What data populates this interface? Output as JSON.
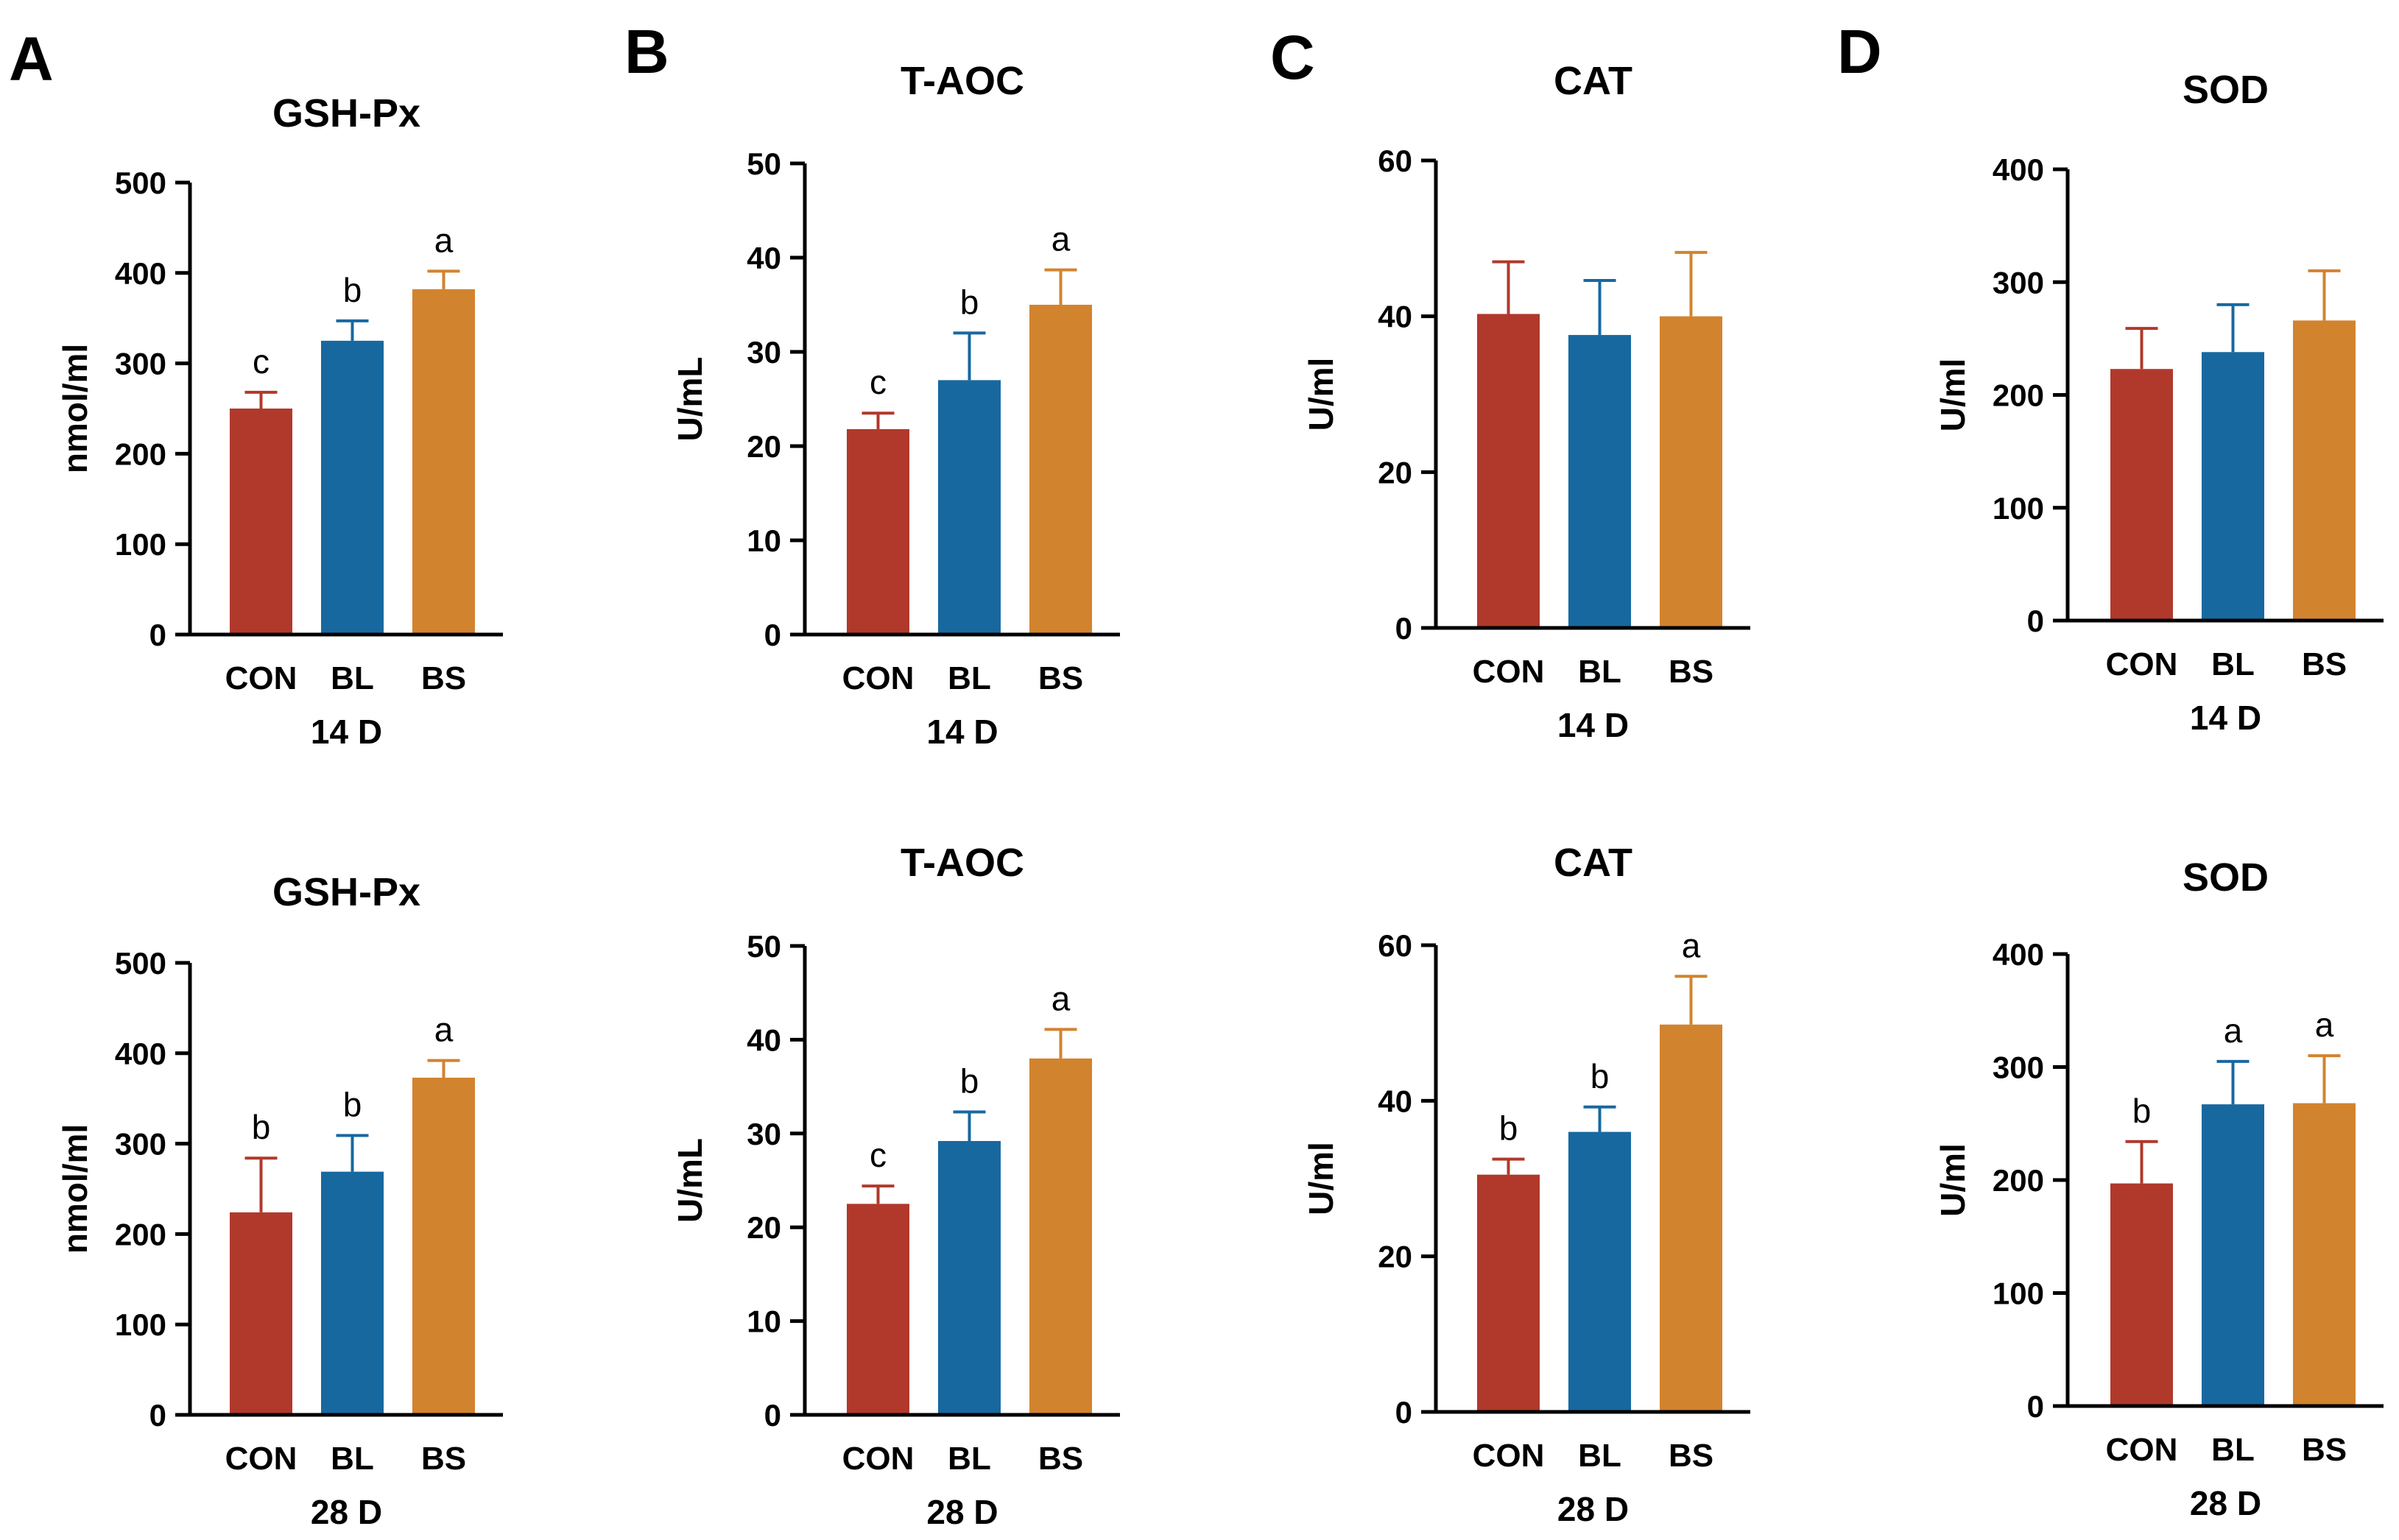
{
  "panels": [
    "A",
    "B",
    "C",
    "D"
  ],
  "colors": {
    "CON": "#B0392B",
    "BL": "#1868A0",
    "BS": "#D2832E",
    "axis": "#000000"
  },
  "chart_data": [
    {
      "type": "bar",
      "panel": "A",
      "title": "GSH-Px",
      "xlabel": "14 D",
      "ylabel": "nmol/ml",
      "categories": [
        "CON",
        "BL",
        "BS"
      ],
      "values": [
        250,
        325,
        382
      ],
      "errors": [
        18,
        22,
        20
      ],
      "significance": [
        "c",
        "b",
        "a"
      ],
      "ylim": [
        0,
        500
      ],
      "yticks": [
        0,
        100,
        200,
        300,
        400,
        500
      ]
    },
    {
      "type": "bar",
      "panel": "B",
      "title": "T-AOC",
      "xlabel": "14 D",
      "ylabel": "U/mL",
      "categories": [
        "CON",
        "BL",
        "BS"
      ],
      "values": [
        21.8,
        27,
        35
      ],
      "errors": [
        1.7,
        5,
        3.7
      ],
      "significance": [
        "c",
        "b",
        "a"
      ],
      "ylim": [
        0,
        50
      ],
      "yticks": [
        0,
        10,
        20,
        30,
        40,
        50
      ]
    },
    {
      "type": "bar",
      "panel": "C",
      "title": "CAT",
      "xlabel": "14 D",
      "ylabel": "U/ml",
      "categories": [
        "CON",
        "BL",
        "BS"
      ],
      "values": [
        40.3,
        37.6,
        40
      ],
      "errors": [
        6.7,
        7,
        8.2
      ],
      "significance": [
        "",
        "",
        ""
      ],
      "ylim": [
        0,
        60
      ],
      "yticks": [
        0,
        20,
        40,
        60
      ]
    },
    {
      "type": "bar",
      "panel": "D",
      "title": "SOD",
      "xlabel": "14 D",
      "ylabel": "U/ml",
      "categories": [
        "CON",
        "BL",
        "BS"
      ],
      "values": [
        223,
        238,
        266
      ],
      "errors": [
        36,
        42,
        44
      ],
      "significance": [
        "",
        "",
        ""
      ],
      "ylim": [
        0,
        400
      ],
      "yticks": [
        0,
        100,
        200,
        300,
        400
      ]
    },
    {
      "type": "bar",
      "panel": "A",
      "title": "GSH-Px",
      "xlabel": "28 D",
      "ylabel": "nmol/ml",
      "categories": [
        "CON",
        "BL",
        "BS"
      ],
      "values": [
        224,
        269,
        373
      ],
      "errors": [
        60,
        40,
        19
      ],
      "significance": [
        "b",
        "b",
        "a"
      ],
      "ylim": [
        0,
        500
      ],
      "yticks": [
        0,
        100,
        200,
        300,
        400,
        500
      ]
    },
    {
      "type": "bar",
      "panel": "B",
      "title": "T-AOC",
      "xlabel": "28 D",
      "ylabel": "U/mL",
      "categories": [
        "CON",
        "BL",
        "BS"
      ],
      "values": [
        22.5,
        29.2,
        38
      ],
      "errors": [
        1.9,
        3.1,
        3.1
      ],
      "significance": [
        "c",
        "b",
        "a"
      ],
      "ylim": [
        0,
        50
      ],
      "yticks": [
        0,
        10,
        20,
        30,
        40,
        50
      ]
    },
    {
      "type": "bar",
      "panel": "C",
      "title": "CAT",
      "xlabel": "28 D",
      "ylabel": "U/ml",
      "categories": [
        "CON",
        "BL",
        "BS"
      ],
      "values": [
        30.5,
        36,
        49.8
      ],
      "errors": [
        2,
        3.2,
        6.2
      ],
      "significance": [
        "b",
        "b",
        "a"
      ],
      "ylim": [
        0,
        60
      ],
      "yticks": [
        0,
        20,
        40,
        60
      ]
    },
    {
      "type": "bar",
      "panel": "D",
      "title": "SOD",
      "xlabel": "28 D",
      "ylabel": "U/ml",
      "categories": [
        "CON",
        "BL",
        "BS"
      ],
      "values": [
        197,
        267,
        268
      ],
      "errors": [
        37,
        38,
        42
      ],
      "significance": [
        "b",
        "a",
        "a"
      ],
      "ylim": [
        0,
        400
      ],
      "yticks": [
        0,
        100,
        200,
        300,
        400
      ]
    }
  ]
}
